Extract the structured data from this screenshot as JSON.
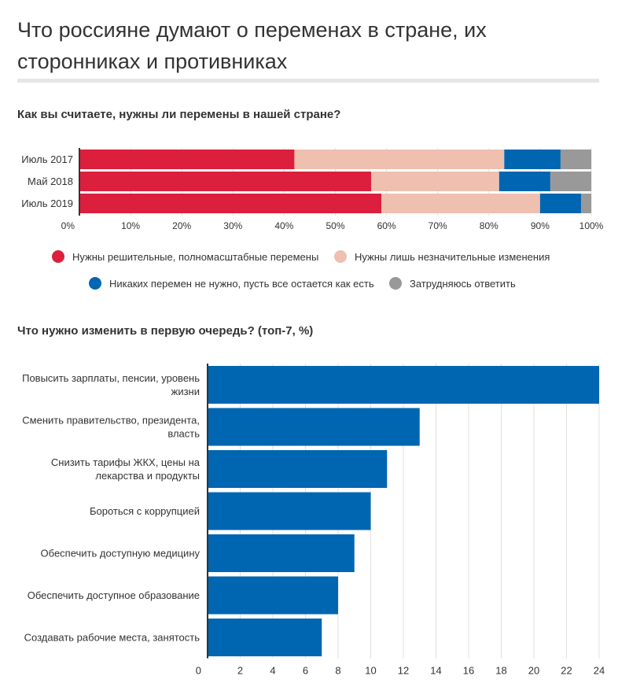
{
  "title": "Что россияне думают о переменах в стране, их сторонниках и противниках",
  "colors": {
    "decisive": "#dc1f3c",
    "minor": "#efc0b0",
    "none": "#0066b2",
    "unsure": "#999999",
    "bar2": "#0066b2"
  },
  "chart_data": [
    {
      "type": "bar",
      "orientation": "horizontal",
      "stacked": true,
      "percent": true,
      "title": "Как вы считаете, нужны ли перемены в нашей стране?",
      "categories": [
        "Июль 2017",
        "Май 2018",
        "Июль 2019"
      ],
      "series": [
        {
          "name": "Нужны решительные, полномасштабные перемены",
          "values": [
            42,
            57,
            59
          ]
        },
        {
          "name": "Нужны лишь незначительные изменения",
          "values": [
            41,
            25,
            31
          ]
        },
        {
          "name": "Никаких перемен не нужно, пусть все остается как есть",
          "values": [
            11,
            10,
            8
          ]
        },
        {
          "name": "Затрудняюсь ответить",
          "values": [
            6,
            8,
            2
          ]
        }
      ],
      "xlim": [
        0,
        100
      ],
      "xticks": [
        "0%",
        "10%",
        "20%",
        "30%",
        "40%",
        "50%",
        "60%",
        "70%",
        "80%",
        "90%",
        "100%"
      ],
      "grid": true,
      "legend_position": "bottom"
    },
    {
      "type": "bar",
      "orientation": "horizontal",
      "title": "Что нужно изменить в первую очередь? (топ-7, %)",
      "categories": [
        "Повысить зарплаты, пенсии, уровень жизни",
        "Сменить правительство, президента, власть",
        "Снизить тарифы ЖКХ, цены на лекарства и продукты",
        "Бороться с коррупцией",
        "Обеспечить доступную медицину",
        "Обеспечить доступное образование",
        "Создавать рабочие места, занятость"
      ],
      "values": [
        24,
        13,
        11,
        10,
        9,
        8,
        7
      ],
      "xlim": [
        0,
        24
      ],
      "xticks": [
        "0",
        "2",
        "4",
        "6",
        "8",
        "10",
        "12",
        "14",
        "16",
        "18",
        "20",
        "22",
        "24"
      ],
      "grid": true
    }
  ]
}
